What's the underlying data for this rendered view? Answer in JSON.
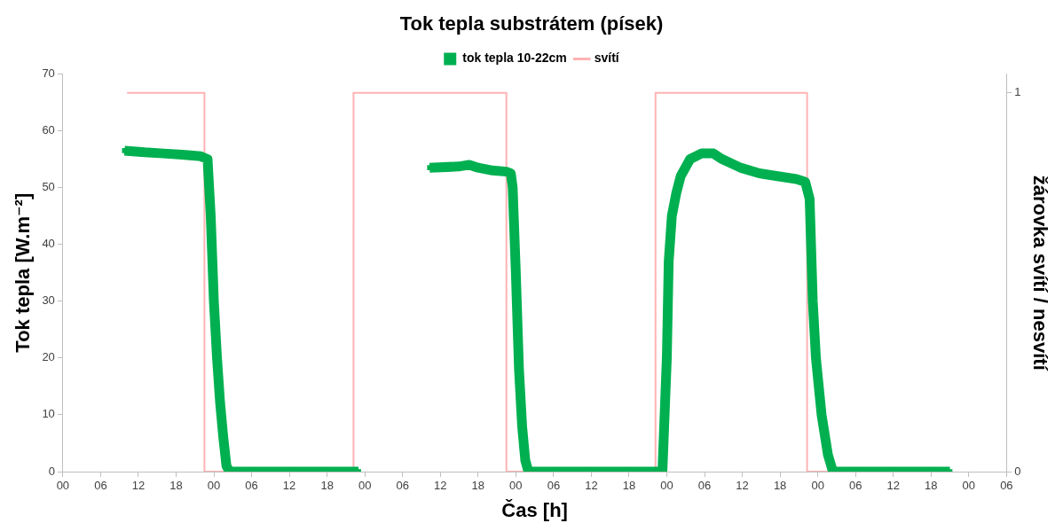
{
  "chart_data": {
    "type": "line",
    "title": "Tok tepla substrátem (písek)",
    "xlabel": "Čas [h]",
    "ylabel": "Tok tepla [W.m⁻²]",
    "y2label": "žárovka svítí / nesvítí",
    "xlim": [
      0,
      150
    ],
    "xticks": [
      {
        "value": 0,
        "label": "00"
      },
      {
        "value": 6,
        "label": "06"
      },
      {
        "value": 12,
        "label": "12"
      },
      {
        "value": 18,
        "label": "18"
      },
      {
        "value": 24,
        "label": "00"
      },
      {
        "value": 30,
        "label": "06"
      },
      {
        "value": 36,
        "label": "12"
      },
      {
        "value": 42,
        "label": "18"
      },
      {
        "value": 48,
        "label": "00"
      },
      {
        "value": 54,
        "label": "06"
      },
      {
        "value": 60,
        "label": "12"
      },
      {
        "value": 66,
        "label": "18"
      },
      {
        "value": 72,
        "label": "00"
      },
      {
        "value": 78,
        "label": "06"
      },
      {
        "value": 84,
        "label": "12"
      },
      {
        "value": 90,
        "label": "18"
      },
      {
        "value": 96,
        "label": "00"
      },
      {
        "value": 102,
        "label": "06"
      },
      {
        "value": 108,
        "label": "12"
      },
      {
        "value": 114,
        "label": "18"
      },
      {
        "value": 120,
        "label": "00"
      },
      {
        "value": 126,
        "label": "06"
      },
      {
        "value": 132,
        "label": "12"
      },
      {
        "value": 138,
        "label": "18"
      },
      {
        "value": 144,
        "label": "00"
      },
      {
        "value": 150,
        "label": "06"
      }
    ],
    "ylim": [
      0,
      70
    ],
    "yticks": [
      0,
      10,
      20,
      30,
      40,
      50,
      60,
      70
    ],
    "y2lim": [
      0,
      1.05
    ],
    "y2ticks": [
      0,
      1
    ],
    "grid": false,
    "legend": "top",
    "line_style": "solid",
    "series": [
      {
        "name": "tok tepla 10-22cm",
        "color": "#00b050",
        "marker": "square",
        "x": [
          9.8,
          13,
          16,
          19,
          21.9,
          23,
          23.5,
          24,
          24.5,
          25,
          25.5,
          26,
          26.5,
          35,
          47,
          52,
          58.3,
          62.9,
          64.6,
          66,
          68.3,
          70.5,
          71.2,
          71.5,
          72,
          72.5,
          73,
          73.5,
          74,
          85,
          94.3,
          95.3,
          96,
          96.3,
          96.8,
          97.5,
          98.2,
          99.7,
          101.5,
          103.4,
          104.8,
          107.7,
          110.7,
          113.6,
          116.6,
          118,
          118.7,
          119.2,
          119.7,
          120.6,
          121.6,
          122.4,
          130,
          141
        ],
        "values": [
          56.5,
          56.2,
          56,
          55.8,
          55.5,
          55,
          45,
          30,
          20,
          12,
          6,
          1,
          0,
          0,
          0,
          null,
          53.5,
          53.7,
          54,
          53.5,
          53,
          52.8,
          52.5,
          50,
          35,
          18,
          8,
          2,
          0,
          0,
          0,
          0,
          20,
          37,
          45,
          49,
          52,
          55,
          56,
          56,
          55,
          53.5,
          52.5,
          52,
          51.5,
          51,
          48,
          30,
          20,
          10,
          3,
          0,
          0,
          0
        ]
      },
      {
        "name": "svítí",
        "color": "#ffb3b3",
        "axis": "y2",
        "marker": "none",
        "x": [
          10.2,
          22.5,
          22.5,
          46.2,
          46.2,
          70.5,
          70.5,
          94.2,
          94.2,
          118.3,
          118.3,
          140
        ],
        "values": [
          1,
          1,
          0,
          0,
          1,
          1,
          0,
          0,
          1,
          1,
          0,
          0
        ]
      }
    ]
  }
}
